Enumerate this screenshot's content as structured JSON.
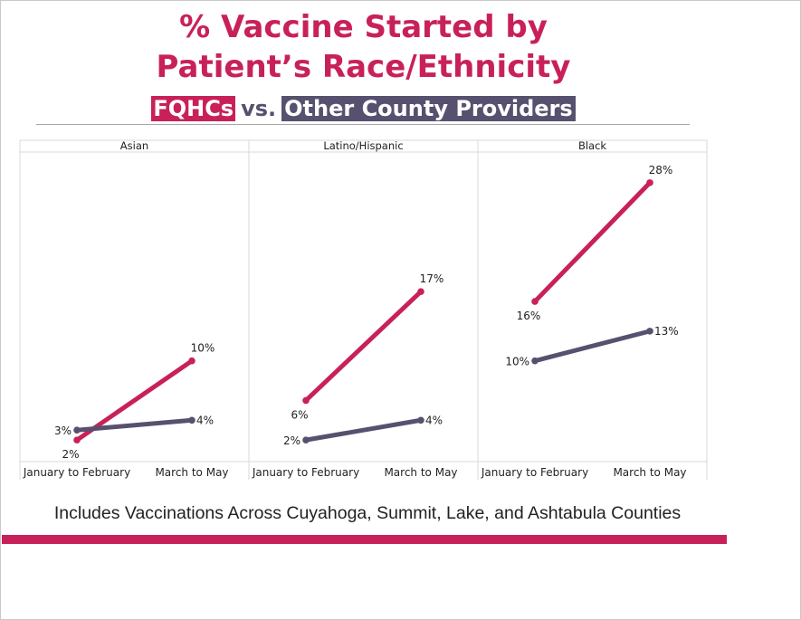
{
  "title_line1": "% Vaccine Started by",
  "title_line2": "Patient’s Race/Ethnicity",
  "subtitle": {
    "series_a": "FQHCs",
    "vs": "vs.",
    "series_b": "Other County Providers"
  },
  "footnote": "Includes Vaccinations Across Cuyahoga, Summit, Lake, and Ashtabula Counties",
  "colors": {
    "fqhc": "#c8215a",
    "other": "#57516f",
    "grid": "#d9d9d9"
  },
  "chart_data": {
    "type": "line",
    "ylim": [
      0,
      30
    ],
    "categories": [
      "January to February",
      "March to May"
    ],
    "panels": [
      {
        "title": "Asian",
        "series": [
          {
            "values": [
              2,
              10
            ],
            "labels": [
              "2%",
              "10%"
            ]
          },
          {
            "values": [
              3,
              4
            ],
            "labels": [
              "3%",
              "4%"
            ]
          }
        ]
      },
      {
        "title": "Latino/Hispanic",
        "series": [
          {
            "values": [
              6,
              17
            ],
            "labels": [
              "6%",
              "17%"
            ]
          },
          {
            "values": [
              2,
              4
            ],
            "labels": [
              "2%",
              "4%"
            ]
          }
        ]
      },
      {
        "title": "Black",
        "series": [
          {
            "values": [
              16,
              28
            ],
            "labels": [
              "16%",
              "28%"
            ]
          },
          {
            "values": [
              10,
              13
            ],
            "labels": [
              "10%",
              "13%"
            ]
          }
        ]
      }
    ]
  }
}
